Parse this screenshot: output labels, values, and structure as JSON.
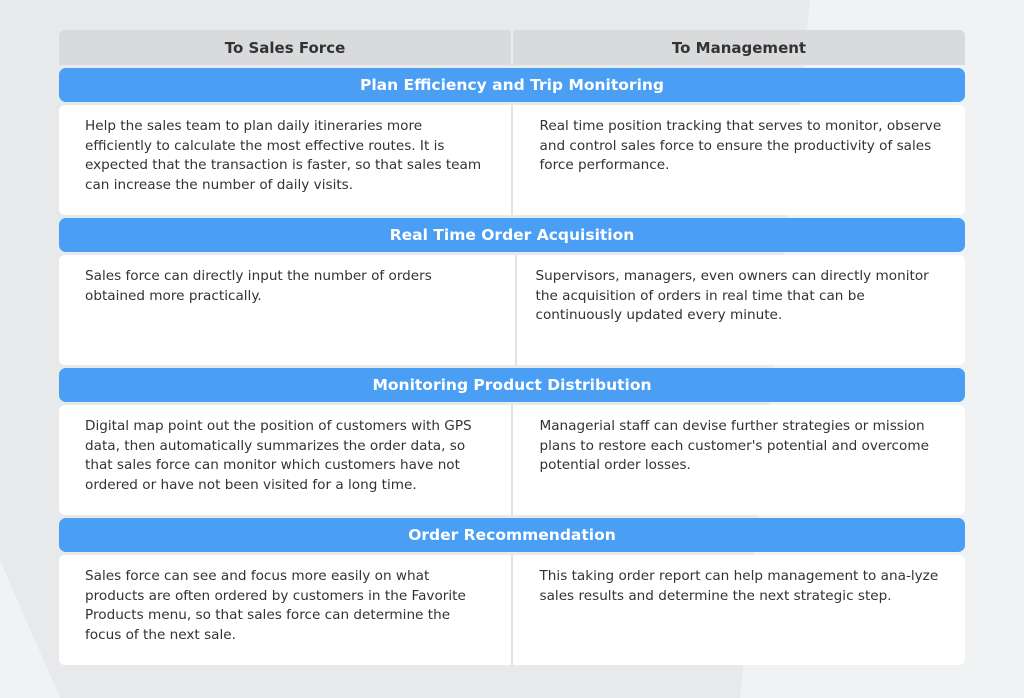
{
  "columns": [
    "To Sales Force",
    "To Management"
  ],
  "colors": {
    "section_header": "#4a9ff5",
    "column_header": "#d9dadc",
    "background": "#e8e9ea"
  },
  "sections": [
    {
      "title": "Plan Efficiency and Trip Monitoring",
      "sales_force": "Help the sales team to plan daily itineraries more efficiently to calculate the most effective routes. It is expected that the transaction is faster, so that sales team can increase the number of daily visits.",
      "management": "Real time position tracking that serves to monitor, observe and control sales force to ensure the productivity of sales force performance."
    },
    {
      "title": "Real Time Order Acquisition",
      "sales_force": "Sales force can directly input the number of orders obtained more practically.",
      "management": "Supervisors, managers, even owners can directly monitor the acquisition of orders in real time that can be continuously updated every minute."
    },
    {
      "title": "Monitoring Product Distribution",
      "sales_force": "Digital map point out the position of customers with GPS data, then automatically summarizes the order data, so that sales force can monitor which customers have not ordered or have not been visited for a long time.",
      "management": "Managerial staff can devise further strategies or mission plans to restore each customer's potential and overcome potential order losses."
    },
    {
      "title": "Order Recommendation",
      "sales_force": "Sales force can see and focus more easily on what products are often ordered by customers in the Favorite Products menu, so that sales force can determine the focus of the next sale.",
      "management": "This taking order report can help management to ana-lyze sales results and determine the next strategic step."
    }
  ]
}
